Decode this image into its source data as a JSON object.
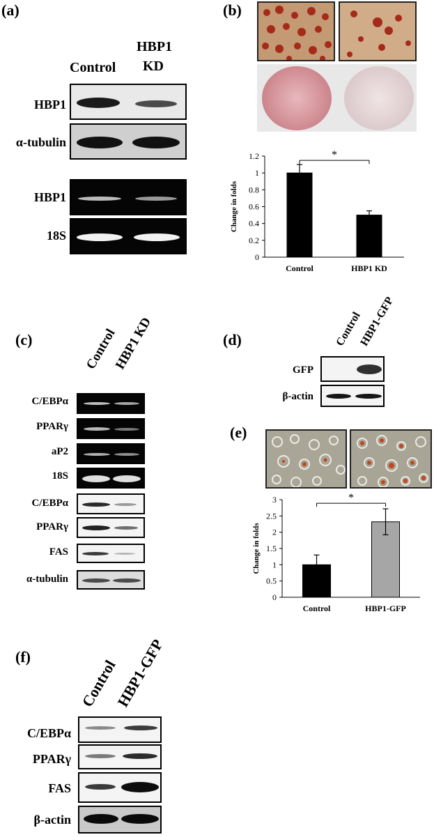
{
  "panels": {
    "a": {
      "label": "(a)",
      "col_control": "Control",
      "col_kd_line1": "HBP1",
      "col_kd_line2": "KD",
      "rows": [
        "HBP1",
        "α-tubulin",
        "HBP1",
        "18S"
      ]
    },
    "b": {
      "label": "(b)"
    },
    "c": {
      "label": "(c)",
      "col_control": "Control",
      "col_kd": "HBP1 KD",
      "rows": [
        "C/EBPα",
        "PPARγ",
        "aP2",
        "18S",
        "C/EBPα",
        "PPARγ",
        "FAS",
        "α-tubulin"
      ]
    },
    "d": {
      "label": "(d)",
      "col_control": "Control",
      "col_gfp": "HBP1-GFP",
      "rows": [
        "GFP",
        "β-actin"
      ]
    },
    "e": {
      "label": "(e)"
    },
    "f": {
      "label": "(f)",
      "col_control": "Control",
      "col_gfp": "HBP1-GFP",
      "rows": [
        "C/EBPα",
        "PPARγ",
        "FAS",
        "β-actin"
      ]
    }
  },
  "chart_data": [
    {
      "panel": "b",
      "type": "bar",
      "categories": [
        "Control",
        "HBP1 KD"
      ],
      "values": [
        1.0,
        0.5
      ],
      "errors": [
        0.1,
        0.05
      ],
      "ylabel": "Change in folds",
      "ylim": [
        0,
        1.2
      ],
      "yticks": [
        "0",
        "0.2",
        "0.4",
        "0.6",
        "0.8",
        "1",
        "1.2"
      ],
      "bar_colors": [
        "#000000",
        "#000000"
      ],
      "significance": "*"
    },
    {
      "panel": "e",
      "type": "bar",
      "categories": [
        "Control",
        "HBP1-GFP"
      ],
      "values": [
        1.0,
        2.32
      ],
      "errors": [
        0.3,
        0.4
      ],
      "ylabel": "Change in  folds",
      "ylim": [
        0,
        3
      ],
      "yticks": [
        "0",
        "0.5",
        "1",
        "1.5",
        "2",
        "2.5",
        "3"
      ],
      "bar_colors": [
        "#000000",
        "#a6a6a6"
      ],
      "significance": "*"
    }
  ]
}
